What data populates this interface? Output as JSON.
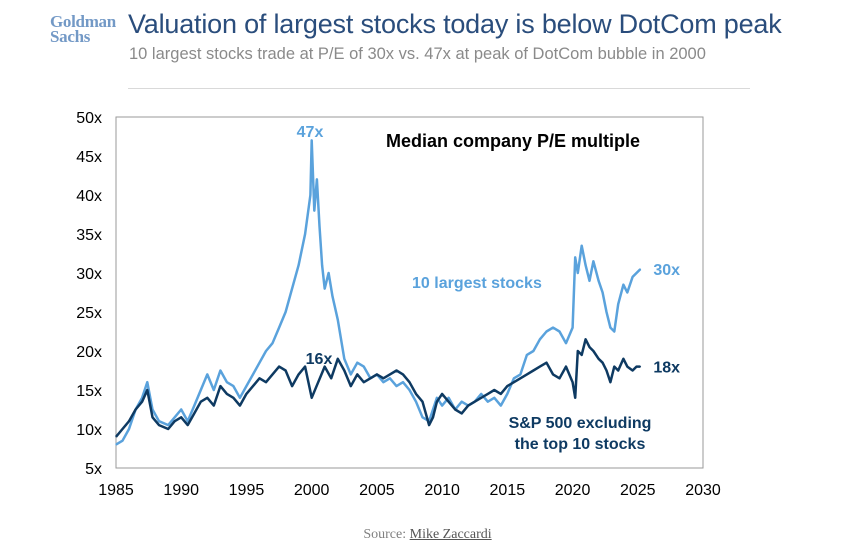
{
  "header": {
    "logo_line1": "Goldman",
    "logo_line2": "Sachs",
    "title": "Valuation of largest stocks today is below DotCom peak",
    "subtitle": "10 largest stocks trade at P/E of 30x vs. 47x at peak of DotCom bubble in 2000"
  },
  "footer": {
    "source_label": "Source:",
    "source_name": "Mike Zaccardi"
  },
  "colors": {
    "top10": "#5aa2dc",
    "ex_top10": "#0e3a62",
    "axis_text": "#000000"
  },
  "chart_data": {
    "type": "line",
    "title": "Median company P/E multiple",
    "xlabel": "",
    "ylabel": "",
    "xlim": [
      1985,
      2030
    ],
    "ylim": [
      5,
      50
    ],
    "x_ticks": [
      "1985",
      "1990",
      "1995",
      "2000",
      "2005",
      "2010",
      "2015",
      "2020",
      "2025",
      "2030"
    ],
    "y_ticks": [
      "5x",
      "10x",
      "15x",
      "20x",
      "25x",
      "30x",
      "35x",
      "40x",
      "45x",
      "50x"
    ],
    "grid": false,
    "series": [
      {
        "name": "10 largest stocks",
        "color": "#5aa2dc",
        "x": [
          1985.0,
          1985.5,
          1986.0,
          1986.5,
          1987.0,
          1987.4,
          1987.8,
          1988.3,
          1989.0,
          1989.5,
          1990.0,
          1990.5,
          1991.0,
          1991.5,
          1992.0,
          1992.5,
          1993.0,
          1993.5,
          1994.0,
          1994.5,
          1995.0,
          1995.5,
          1996.0,
          1996.5,
          1997.0,
          1997.5,
          1998.0,
          1998.5,
          1999.0,
          1999.5,
          1999.9,
          2000.0,
          2000.2,
          2000.4,
          2000.6,
          2000.8,
          2001.0,
          2001.3,
          2001.6,
          2002.0,
          2002.5,
          2003.0,
          2003.5,
          2004.0,
          2004.5,
          2005.0,
          2005.5,
          2006.0,
          2006.5,
          2007.0,
          2007.5,
          2008.0,
          2008.5,
          2009.0,
          2009.3,
          2009.6,
          2010.0,
          2010.5,
          2011.0,
          2011.5,
          2012.0,
          2012.5,
          2013.0,
          2013.5,
          2014.0,
          2014.5,
          2015.0,
          2015.5,
          2016.0,
          2016.5,
          2017.0,
          2017.5,
          2018.0,
          2018.5,
          2019.0,
          2019.5,
          2020.0,
          2020.2,
          2020.4,
          2020.7,
          2021.0,
          2021.3,
          2021.6,
          2022.0,
          2022.3,
          2022.6,
          2022.9,
          2023.2,
          2023.5,
          2023.9,
          2024.2,
          2024.6,
          2024.9,
          2025.2
        ],
        "values": [
          8.0,
          8.5,
          10.0,
          12.5,
          14.0,
          16.0,
          12.5,
          11.0,
          10.5,
          11.5,
          12.5,
          11.0,
          13.0,
          15.0,
          17.0,
          15.0,
          17.5,
          16.0,
          15.5,
          14.0,
          15.5,
          17.0,
          18.5,
          20.0,
          21.0,
          23.0,
          25.0,
          28.0,
          31.0,
          35.0,
          40.0,
          47.0,
          38.0,
          42.0,
          36.0,
          31.0,
          28.0,
          30.0,
          27.0,
          24.0,
          19.0,
          17.0,
          18.5,
          18.0,
          16.5,
          17.0,
          16.0,
          16.5,
          15.5,
          16.0,
          15.0,
          13.5,
          11.5,
          11.0,
          12.5,
          14.0,
          13.0,
          14.0,
          12.5,
          13.5,
          13.0,
          13.5,
          14.5,
          13.5,
          14.0,
          13.0,
          14.5,
          16.5,
          17.0,
          19.5,
          20.0,
          21.5,
          22.5,
          23.0,
          22.5,
          21.0,
          23.0,
          32.0,
          30.0,
          33.5,
          31.0,
          29.0,
          31.5,
          29.0,
          27.5,
          25.0,
          23.0,
          22.5,
          26.0,
          28.5,
          27.5,
          29.5,
          30.0,
          30.5
        ],
        "end_label": "30x",
        "label": "10 largest stocks",
        "peak_label": "47x"
      },
      {
        "name": "S&P 500 excluding the top 10 stocks",
        "color": "#0e3a62",
        "x": [
          1985.0,
          1985.5,
          1986.0,
          1986.5,
          1987.0,
          1987.4,
          1987.8,
          1988.3,
          1989.0,
          1989.5,
          1990.0,
          1990.5,
          1991.0,
          1991.5,
          1992.0,
          1992.5,
          1993.0,
          1993.5,
          1994.0,
          1994.5,
          1995.0,
          1995.5,
          1996.0,
          1996.5,
          1997.0,
          1997.5,
          1998.0,
          1998.5,
          1999.0,
          1999.5,
          2000.0,
          2000.5,
          2001.0,
          2001.5,
          2002.0,
          2002.5,
          2003.0,
          2003.5,
          2004.0,
          2004.5,
          2005.0,
          2005.5,
          2006.0,
          2006.5,
          2007.0,
          2007.5,
          2008.0,
          2008.5,
          2009.0,
          2009.3,
          2009.6,
          2010.0,
          2010.5,
          2011.0,
          2011.5,
          2012.0,
          2012.5,
          2013.0,
          2013.5,
          2014.0,
          2014.5,
          2015.0,
          2015.5,
          2016.0,
          2016.5,
          2017.0,
          2017.5,
          2018.0,
          2018.5,
          2019.0,
          2019.5,
          2020.0,
          2020.2,
          2020.4,
          2020.7,
          2021.0,
          2021.3,
          2021.6,
          2022.0,
          2022.3,
          2022.6,
          2022.9,
          2023.2,
          2023.5,
          2023.9,
          2024.2,
          2024.6,
          2024.9,
          2025.2
        ],
        "values": [
          9.0,
          10.0,
          11.0,
          12.5,
          13.5,
          15.0,
          11.5,
          10.5,
          10.0,
          11.0,
          11.5,
          10.5,
          12.0,
          13.5,
          14.0,
          13.0,
          15.5,
          14.5,
          14.0,
          13.0,
          14.5,
          15.5,
          16.5,
          16.0,
          17.0,
          18.0,
          17.5,
          15.5,
          17.0,
          18.0,
          14.0,
          16.0,
          18.0,
          16.5,
          19.0,
          17.5,
          15.5,
          17.0,
          16.0,
          16.5,
          17.0,
          16.5,
          17.0,
          17.5,
          17.0,
          16.0,
          14.5,
          13.5,
          10.5,
          11.5,
          13.5,
          14.5,
          13.5,
          12.5,
          12.0,
          13.0,
          13.5,
          14.0,
          14.5,
          15.0,
          14.5,
          15.5,
          16.0,
          16.5,
          17.0,
          17.5,
          18.0,
          18.5,
          17.0,
          16.5,
          18.0,
          16.0,
          14.0,
          20.0,
          19.5,
          21.5,
          20.5,
          20.0,
          19.0,
          18.5,
          17.5,
          16.0,
          18.0,
          17.5,
          19.0,
          18.0,
          17.5,
          18.0,
          18.0
        ],
        "end_label": "18x",
        "label": "S&P 500 excluding",
        "label_line2": "the top 10 stocks",
        "peak_label": "16x"
      }
    ]
  }
}
